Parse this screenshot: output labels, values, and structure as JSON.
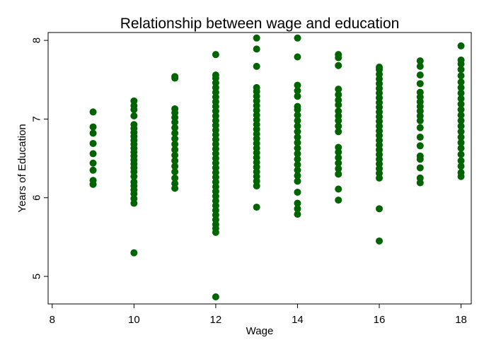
{
  "chart_data": {
    "type": "scatter",
    "title": "Relationship between wage and education",
    "xlabel": "Wage",
    "ylabel": "Years of Education",
    "xlim": [
      7.9,
      18.25
    ],
    "ylim": [
      4.65,
      8.1
    ],
    "x_ticks": [
      8,
      10,
      12,
      14,
      16,
      18
    ],
    "y_ticks": [
      5,
      6,
      7,
      8
    ],
    "grid": false,
    "legend": "none",
    "marker_color": "#006400",
    "points": [
      {
        "x": 9,
        "y": [
          6.17,
          6.22,
          6.35,
          6.44,
          6.56,
          6.69,
          6.82,
          6.9,
          7.09
        ]
      },
      {
        "x": 10,
        "y": [
          5.3,
          5.93,
          5.99,
          6.05,
          6.1,
          6.15,
          6.2,
          6.27,
          6.33,
          6.38,
          6.43,
          6.48,
          6.53,
          6.58,
          6.63,
          6.68,
          6.73,
          6.78,
          6.83,
          6.88,
          6.93,
          7.04,
          7.12,
          7.17,
          7.23
        ]
      },
      {
        "x": 11,
        "y": [
          6.12,
          6.18,
          6.25,
          6.33,
          6.4,
          6.47,
          6.54,
          6.61,
          6.68,
          6.75,
          6.82,
          6.89,
          6.96,
          7.02,
          7.08,
          7.13,
          7.52,
          7.54
        ]
      },
      {
        "x": 12,
        "y": [
          4.74,
          5.56,
          5.61,
          5.66,
          5.72,
          5.78,
          5.84,
          5.9,
          5.96,
          6.02,
          6.08,
          6.14,
          6.2,
          6.26,
          6.32,
          6.38,
          6.44,
          6.5,
          6.56,
          6.62,
          6.68,
          6.74,
          6.8,
          6.86,
          6.92,
          6.98,
          7.04,
          7.1,
          7.16,
          7.22,
          7.28,
          7.34,
          7.4,
          7.46,
          7.52,
          7.56,
          7.82
        ]
      },
      {
        "x": 13,
        "y": [
          5.88,
          6.15,
          6.21,
          6.27,
          6.33,
          6.39,
          6.45,
          6.51,
          6.57,
          6.63,
          6.69,
          6.75,
          6.81,
          6.87,
          6.93,
          6.99,
          7.05,
          7.11,
          7.17,
          7.23,
          7.29,
          7.35,
          7.4,
          7.67,
          7.89,
          8.03
        ]
      },
      {
        "x": 14,
        "y": [
          5.79,
          5.86,
          5.93,
          6.07,
          6.21,
          6.28,
          6.35,
          6.42,
          6.49,
          6.56,
          6.63,
          6.7,
          6.77,
          6.84,
          6.91,
          6.98,
          7.05,
          7.12,
          7.16,
          7.29,
          7.36,
          7.43,
          7.79,
          8.03
        ]
      },
      {
        "x": 15,
        "y": [
          5.97,
          6.11,
          6.3,
          6.37,
          6.44,
          6.51,
          6.58,
          6.64,
          6.84,
          6.91,
          6.98,
          7.04,
          7.1,
          7.18,
          7.24,
          7.31,
          7.38,
          7.68,
          7.78,
          7.82
        ]
      },
      {
        "x": 16,
        "y": [
          5.45,
          5.86,
          6.25,
          6.31,
          6.37,
          6.43,
          6.49,
          6.55,
          6.61,
          6.67,
          6.73,
          6.79,
          6.85,
          6.91,
          6.97,
          7.03,
          7.09,
          7.15,
          7.21,
          7.27,
          7.33,
          7.39,
          7.45,
          7.51,
          7.57,
          7.63,
          7.66
        ]
      },
      {
        "x": 17,
        "y": [
          6.19,
          6.25,
          6.38,
          6.49,
          6.53,
          6.66,
          6.77,
          6.89,
          6.98,
          7.04,
          7.1,
          7.16,
          7.22,
          7.28,
          7.34,
          7.45,
          7.56,
          7.67,
          7.74
        ]
      },
      {
        "x": 18,
        "y": [
          6.27,
          6.32,
          6.4,
          6.47,
          6.55,
          6.63,
          6.7,
          6.77,
          6.84,
          6.91,
          6.98,
          7.05,
          7.12,
          7.19,
          7.26,
          7.33,
          7.4,
          7.47,
          7.55,
          7.63,
          7.7,
          7.75,
          7.93
        ]
      }
    ]
  }
}
